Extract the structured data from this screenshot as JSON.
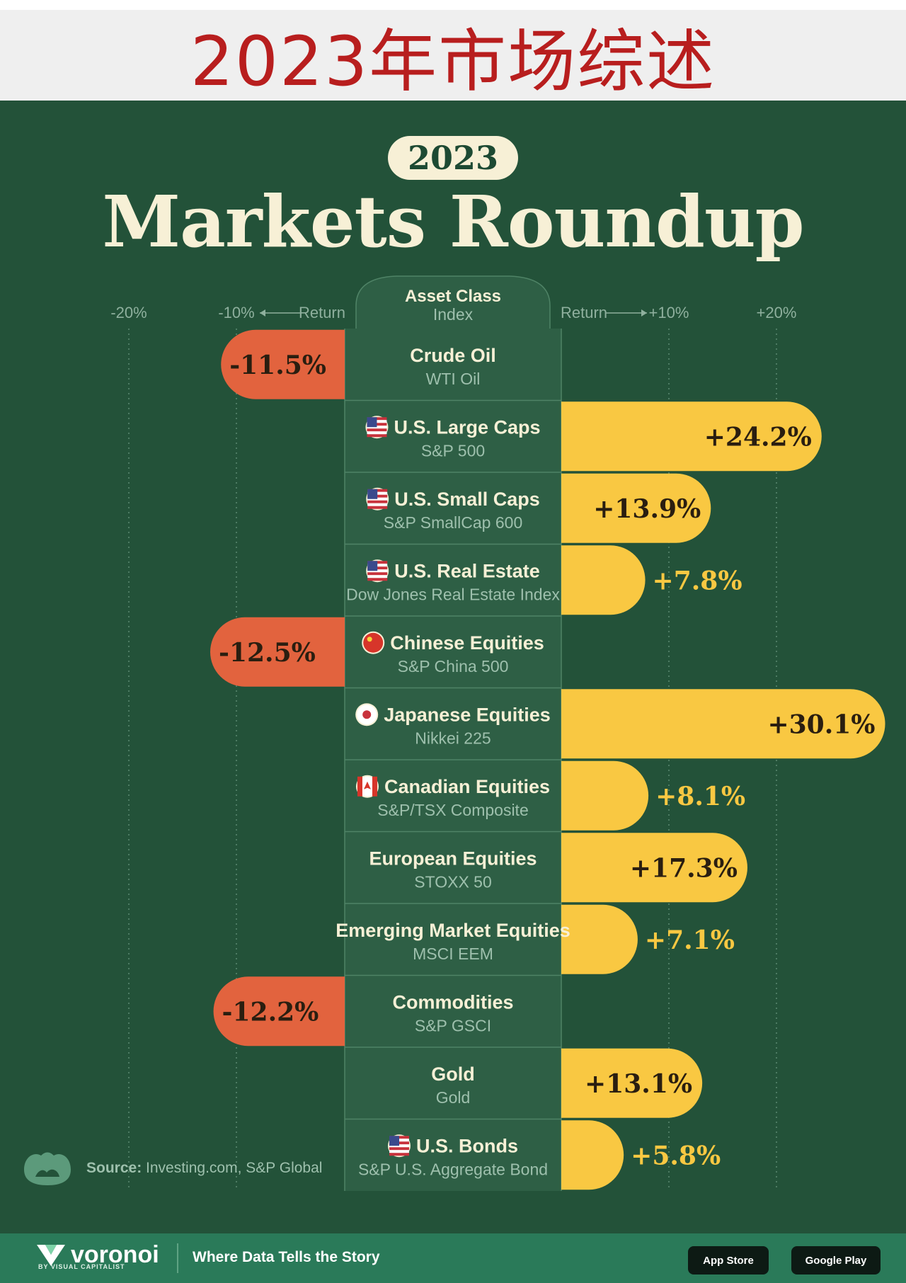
{
  "banner_title": "2023年市场综述",
  "poster": {
    "year": "2023",
    "title": "Markets Roundup",
    "source_label": "Source:",
    "source_text": "Investing.com, S&P Global"
  },
  "footer": {
    "brand": "voronoi",
    "brand_by": "BY VISUAL CAPITALIST",
    "tagline": "Where Data Tells the Story",
    "app_store": "App Store",
    "google_play": "Google Play"
  },
  "colors": {
    "background": "#235239",
    "positive": "#f9c842",
    "negative": "#e2633e",
    "cream": "#f7f0d6"
  },
  "chart_data": {
    "type": "bar",
    "orientation": "horizontal",
    "header": {
      "title": "Asset Class",
      "subtitle": "Index"
    },
    "axis_left_label": "Return",
    "axis_right_label": "Return",
    "tick_labels_left": [
      "-20%",
      "-10%"
    ],
    "tick_labels_right": [
      "+10%",
      "+20%"
    ],
    "xlim": [
      -20,
      30
    ],
    "grid": true,
    "categories": [
      {
        "name": "Crude Oil",
        "index": "WTI Oil",
        "value": -11.5,
        "label": "-11.5%",
        "flag": ""
      },
      {
        "name": "U.S. Large Caps",
        "index": "S&P 500",
        "value": 24.2,
        "label": "+24.2%",
        "flag": "us-flag-icon"
      },
      {
        "name": "U.S. Small Caps",
        "index": "S&P SmallCap 600",
        "value": 13.9,
        "label": "+13.9%",
        "flag": "us-flag-icon"
      },
      {
        "name": "U.S. Real Estate",
        "index": "Dow Jones Real Estate Index",
        "value": 7.8,
        "label": "+7.8%",
        "flag": "us-flag-icon"
      },
      {
        "name": "Chinese Equities",
        "index": "S&P China 500",
        "value": -12.5,
        "label": "-12.5%",
        "flag": "china-flag-icon"
      },
      {
        "name": "Japanese Equities",
        "index": "Nikkei 225",
        "value": 30.1,
        "label": "+30.1%",
        "flag": "japan-flag-icon"
      },
      {
        "name": "Canadian Equities",
        "index": "S&P/TSX Composite",
        "value": 8.1,
        "label": "+8.1%",
        "flag": "canada-flag-icon"
      },
      {
        "name": "European Equities",
        "index": "STOXX 50",
        "value": 17.3,
        "label": "+17.3%",
        "flag": ""
      },
      {
        "name": "Emerging Market Equities",
        "index": "MSCI EEM",
        "value": 7.1,
        "label": "+7.1%",
        "flag": ""
      },
      {
        "name": "Commodities",
        "index": "S&P GSCI",
        "value": -12.2,
        "label": "-12.2%",
        "flag": ""
      },
      {
        "name": "Gold",
        "index": "Gold",
        "value": 13.1,
        "label": "+13.1%",
        "flag": ""
      },
      {
        "name": "U.S. Bonds",
        "index": "S&P U.S. Aggregate Bond",
        "value": 5.8,
        "label": "+5.8%",
        "flag": "us-flag-icon"
      }
    ]
  }
}
